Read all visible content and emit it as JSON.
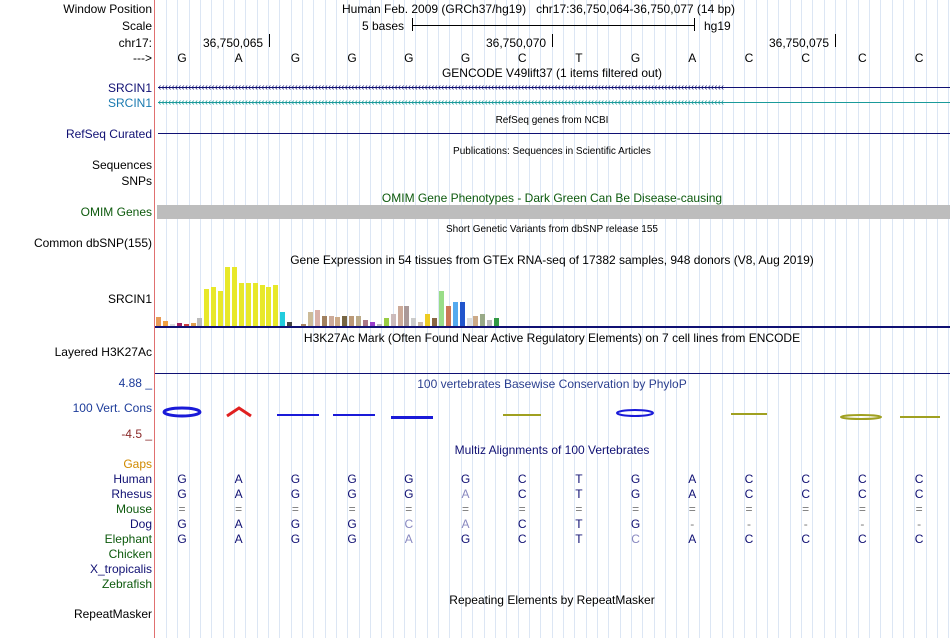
{
  "header": {
    "window_position_label": "Window Position",
    "title": "Human Feb. 2009 (GRCh37/hg19)",
    "coords": "chr17:36,750,064-36,750,077 (14 bp)",
    "scale_label": "Scale",
    "scale_value": "5 bases",
    "assembly": "hg19",
    "chrom_label": "chr17:",
    "ticks": [
      "36,750,065",
      "36,750,070",
      "36,750,075"
    ],
    "arrow_label": "--->"
  },
  "sequence": [
    "G",
    "A",
    "G",
    "G",
    "G",
    "G",
    "C",
    "T",
    "G",
    "A",
    "C",
    "C",
    "C",
    "C"
  ],
  "tracks": {
    "gencode": {
      "title": "GENCODE V49lift37 (1 items filtered out)",
      "genes": [
        "SRCIN1",
        "SRCIN1"
      ]
    },
    "refseq": {
      "label": "RefSeq Curated",
      "title": "RefSeq genes from NCBI"
    },
    "publications": {
      "title": "Publications: Sequences in Scientific Articles",
      "labels": [
        "Sequences",
        "SNPs"
      ]
    },
    "omim": {
      "title": "OMIM Gene Phenotypes - Dark Green Can Be Disease-causing",
      "label": "OMIM Genes"
    },
    "dbsnp": {
      "title": "Short Genetic Variants from dbSNP release 155",
      "label": "Common dbSNP(155)"
    },
    "gtex": {
      "title": "Gene Expression in 54 tissues from GTEx RNA-seq of 17382 samples, 948 donors (V8, Aug 2019)",
      "label": "SRCIN1",
      "values": [
        9,
        5,
        2,
        3,
        2,
        3,
        8,
        36,
        38,
        34,
        58,
        58,
        42,
        42,
        42,
        40,
        38,
        40,
        14,
        4,
        0,
        2,
        14,
        16,
        10,
        10,
        9,
        10,
        10,
        10,
        6,
        4,
        2,
        8,
        12,
        20,
        20,
        8,
        4,
        12,
        8,
        34,
        20,
        24,
        24,
        8,
        10,
        12,
        6,
        8,
        0,
        0,
        0,
        0
      ],
      "colors": [
        "#e79a56",
        "#f0a040",
        "#dddddd",
        "#a02060",
        "#cc4040",
        "#e0a050",
        "#bbbbbb",
        "#e8e82a",
        "#e8e82a",
        "#e8e82a",
        "#e8e82a",
        "#e8e82a",
        "#e8e82a",
        "#e8e82a",
        "#e8e82a",
        "#e8e82a",
        "#e8e82a",
        "#e8e82a",
        "#22ccdd",
        "#444444",
        "#dddddd",
        "#aa8866",
        "#ccbb99",
        "#d9b0a8",
        "#a08060",
        "#ccaa99",
        "#ccaa88",
        "#776644",
        "#bb9977",
        "#bbaa88",
        "#aa7788",
        "#9940cc",
        "#bbbbbb",
        "#99cc44",
        "#ccbbbb",
        "#ccaa99",
        "#aa9999",
        "#cccccc",
        "#ccbbaa",
        "#eecc22",
        "#886644",
        "#99dd88",
        "#cc7755",
        "#55aaee",
        "#2255cc",
        "#dddddd",
        "#ccaa88",
        "#99aa88",
        "#bbbbbb",
        "#339944",
        "#ee3366",
        "#dddddd",
        "#bbbbbb",
        "#cccccc"
      ],
      "ymax": 58
    },
    "h3k27ac": {
      "title": "H3K27Ac Mark (Often Found Near Active Regulatory Elements) on 7 cell lines from ENCODE",
      "label": "Layered H3K27Ac"
    },
    "conservation": {
      "title": "100 vertebrates Basewise Conservation by PhyloP",
      "label": "100 Vert. Cons",
      "ymax": "4.88 _",
      "ymin": "-4.5 _"
    },
    "multiz": {
      "title": "Multiz Alignments of 100 Vertebrates",
      "gaps_label": "Gaps",
      "species": [
        {
          "name": "Human",
          "bases": [
            "G",
            "A",
            "G",
            "G",
            "G",
            "G",
            "C",
            "T",
            "G",
            "A",
            "C",
            "C",
            "C",
            "C"
          ]
        },
        {
          "name": "Rhesus",
          "bases": [
            "G",
            "A",
            "G",
            "G",
            "G",
            "A",
            "C",
            "T",
            "G",
            "A",
            "C",
            "C",
            "C",
            "C"
          ]
        },
        {
          "name": "Mouse",
          "bases": [
            "=",
            "=",
            "=",
            "=",
            "=",
            "=",
            "=",
            "=",
            "=",
            "=",
            "=",
            "=",
            "=",
            "="
          ]
        },
        {
          "name": "Dog",
          "bases": [
            "G",
            "A",
            "G",
            "G",
            "C",
            "A",
            "C",
            "T",
            "G",
            "-",
            "-",
            "-",
            "-",
            "-"
          ]
        },
        {
          "name": "Elephant",
          "bases": [
            "G",
            "A",
            "G",
            "G",
            "A",
            "G",
            "C",
            "T",
            "C",
            "A",
            "C",
            "C",
            "C",
            "C"
          ]
        },
        {
          "name": "Chicken",
          "bases": []
        },
        {
          "name": "X_tropicalis",
          "bases": []
        },
        {
          "name": "Zebrafish",
          "bases": []
        }
      ]
    },
    "repeatmasker": {
      "title": "Repeating Elements by RepeatMasker",
      "label": "RepeatMasker"
    }
  }
}
